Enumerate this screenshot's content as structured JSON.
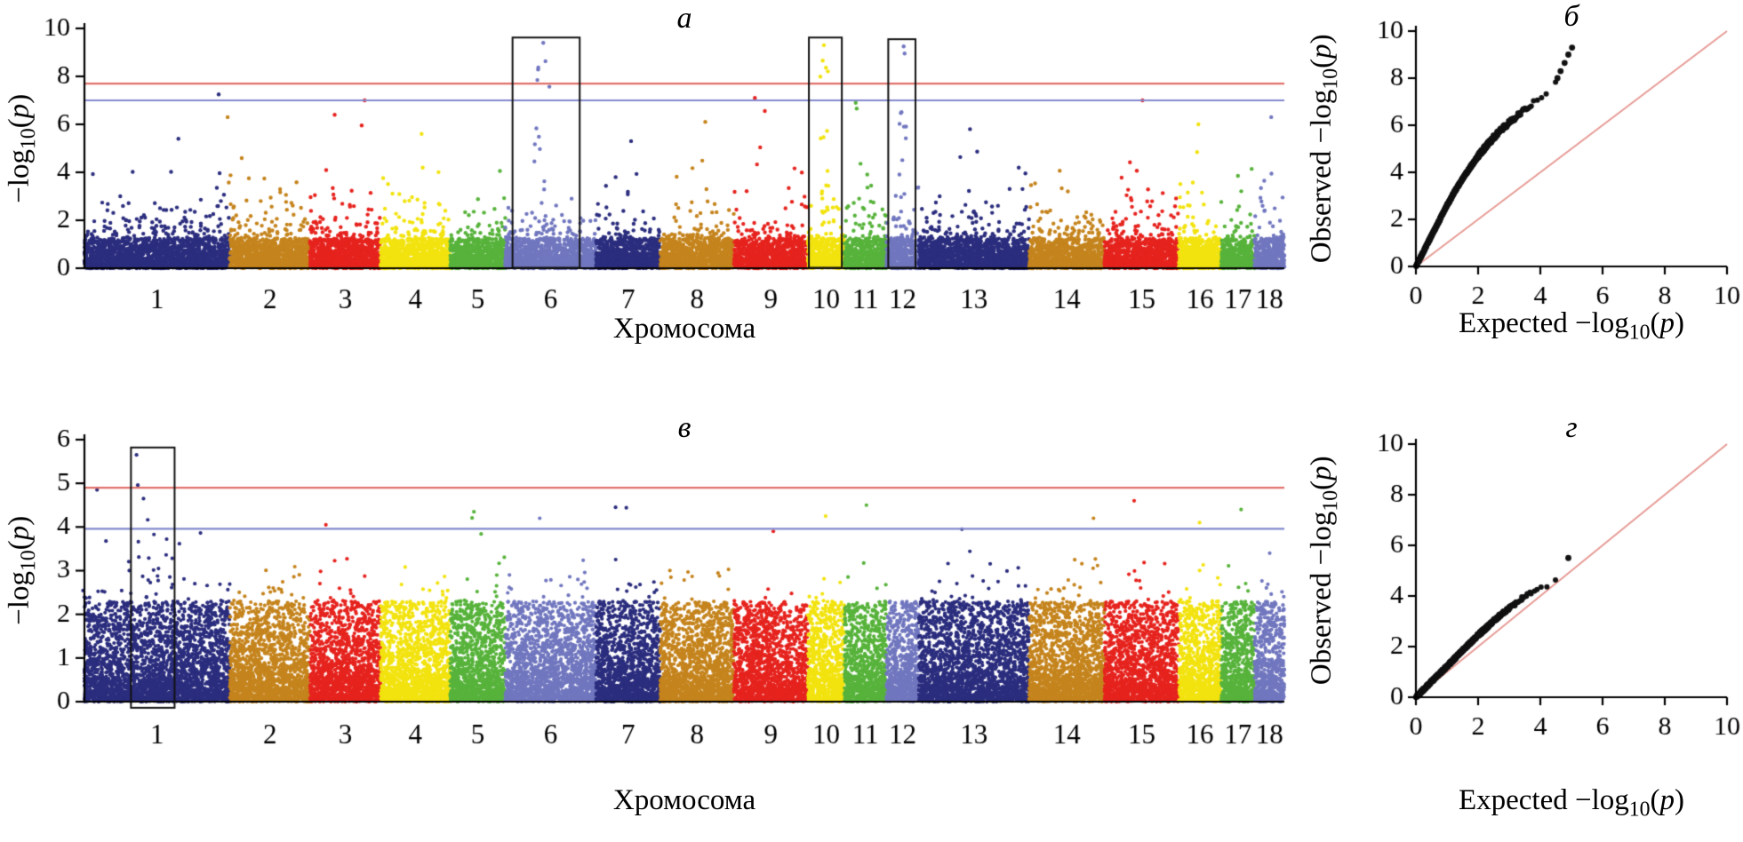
{
  "chart_data": [
    {
      "type": "manhattan",
      "title": "а",
      "xlabel": "Хромосома",
      "ylabel": {
        "prefix": "−log",
        "sub": "10",
        "open": "(",
        "var": "p",
        "close": ")"
      },
      "ylim": [
        0,
        10
      ],
      "yticks": [
        0,
        2,
        4,
        6,
        8,
        10
      ],
      "threshold_lines": [
        {
          "value": 7.7,
          "color": "#e0716a"
        },
        {
          "value": 7.0,
          "color": "#8289ce"
        }
      ],
      "palette": [
        "#2b2d7e",
        "#c5841d",
        "#e6231e",
        "#f2e30f",
        "#57b33b",
        "#7177bf"
      ],
      "density": {
        "points_per_unit": 7,
        "uniform_frac": 0.4,
        "dense_top": 1.25,
        "base_scale": 0.95,
        "tail_scale": 2.0
      },
      "seed": 11,
      "chromosomes": [
        {
          "label": "1",
          "size": 274,
          "bg_max": 4.7,
          "peaks": [
            {
              "pos": 0.94,
              "top": 7.25,
              "n": 2
            },
            {
              "pos": 0.55,
              "top": 5.4,
              "n": 2
            }
          ]
        },
        {
          "label": "2",
          "size": 151,
          "bg_max": 4.6,
          "peaks": [
            {
              "pos": 0.07,
              "top": 6.3,
              "n": 4
            }
          ]
        },
        {
          "label": "3",
          "size": 133,
          "bg_max": 4.9,
          "peaks": [
            {
              "pos": 0.82,
              "top": 7.0,
              "n": 3
            },
            {
              "pos": 0.3,
              "top": 6.4,
              "n": 3
            }
          ]
        },
        {
          "label": "4",
          "size": 131,
          "bg_max": 4.2,
          "peaks": [
            {
              "pos": 0.5,
              "top": 5.6,
              "n": 2
            }
          ]
        },
        {
          "label": "5",
          "size": 104,
          "bg_max": 4.6,
          "peaks": []
        },
        {
          "label": "6",
          "size": 171,
          "bg_max": 4.3,
          "peaks": [
            {
              "pos": 0.42,
              "top": 9.4,
              "n": 13
            }
          ]
        },
        {
          "label": "7",
          "size": 121,
          "bg_max": 4.3,
          "peaks": [
            {
              "pos": 0.45,
              "top": 5.3,
              "n": 2
            }
          ]
        },
        {
          "label": "8",
          "size": 139,
          "bg_max": 4.3,
          "peaks": [
            {
              "pos": 0.55,
              "top": 6.1,
              "n": 3
            }
          ]
        },
        {
          "label": "9",
          "size": 139,
          "bg_max": 4.4,
          "peaks": [
            {
              "pos": 0.35,
              "top": 7.1,
              "n": 4
            }
          ]
        },
        {
          "label": "10",
          "size": 69,
          "bg_max": 4.3,
          "peaks": [
            {
              "pos": 0.45,
              "top": 9.3,
              "n": 14
            }
          ]
        },
        {
          "label": "11",
          "size": 79,
          "bg_max": 4.4,
          "peaks": [
            {
              "pos": 0.3,
              "top": 6.9,
              "n": 3
            }
          ]
        },
        {
          "label": "12",
          "size": 61,
          "bg_max": 4.2,
          "peaks": [
            {
              "pos": 0.5,
              "top": 9.25,
              "n": 11
            }
          ]
        },
        {
          "label": "13",
          "size": 208,
          "bg_max": 4.4,
          "peaks": [
            {
              "pos": 0.45,
              "top": 5.8,
              "n": 3
            }
          ]
        },
        {
          "label": "14",
          "size": 142,
          "bg_max": 4.5,
          "peaks": []
        },
        {
          "label": "15",
          "size": 140,
          "bg_max": 4.5,
          "peaks": [
            {
              "pos": 0.45,
              "top": 7.0,
              "n": 3
            }
          ]
        },
        {
          "label": "16",
          "size": 80,
          "bg_max": 4.3,
          "peaks": [
            {
              "pos": 0.5,
              "top": 6.0,
              "n": 2
            }
          ]
        },
        {
          "label": "17",
          "size": 63,
          "bg_max": 4.3,
          "peaks": []
        },
        {
          "label": "18",
          "size": 56,
          "bg_max": 4.2,
          "peaks": [
            {
              "pos": 0.5,
              "top": 6.3,
              "n": 2
            }
          ]
        }
      ],
      "highlight_boxes": [
        {
          "chr": 6,
          "x0": 0.08,
          "x1": 0.82,
          "y0": 0.02,
          "y1": 9.62
        },
        {
          "chr": 10,
          "x0": 0.03,
          "x1": 0.93,
          "y0": 0.02,
          "y1": 9.62
        },
        {
          "chr": 12,
          "x0": 0.06,
          "x1": 0.9,
          "y0": 0.02,
          "y1": 9.55
        }
      ]
    },
    {
      "type": "qq",
      "title": "б",
      "xlabel": {
        "prefix": "Expected −log",
        "sub": "10",
        "open": "(",
        "var": "p",
        "close": ")"
      },
      "ylabel": {
        "prefix": "Observed −log",
        "sub": "10",
        "open": "(",
        "var": "p",
        "close": ")"
      },
      "xlim": [
        0,
        10
      ],
      "ylim": [
        0,
        10
      ],
      "xticks": [
        0,
        2,
        4,
        6,
        8,
        10
      ],
      "yticks": [
        0,
        2,
        4,
        6,
        8,
        10
      ],
      "diagonal": {
        "from": [
          0,
          0
        ],
        "to": [
          10,
          10
        ],
        "color": "#e59791"
      },
      "point_color": "#111111",
      "curve": [
        [
          0,
          0
        ],
        [
          0.25,
          0.65
        ],
        [
          0.5,
          1.3
        ],
        [
          0.75,
          1.95
        ],
        [
          1,
          2.6
        ],
        [
          1.25,
          3.2
        ],
        [
          1.5,
          3.72
        ],
        [
          1.75,
          4.22
        ],
        [
          2,
          4.68
        ],
        [
          2.25,
          5.1
        ],
        [
          2.5,
          5.48
        ],
        [
          2.75,
          5.82
        ],
        [
          3,
          6.12
        ],
        [
          3.25,
          6.4
        ],
        [
          3.5,
          6.67
        ],
        [
          3.75,
          6.93
        ],
        [
          4,
          7.18
        ],
        [
          4.25,
          7.45
        ],
        [
          4.5,
          7.8
        ]
      ],
      "outlier_points": [
        [
          4.55,
          8.0
        ],
        [
          4.65,
          8.3
        ],
        [
          4.78,
          8.65
        ],
        [
          4.9,
          9.0
        ],
        [
          5.02,
          9.3
        ]
      ],
      "seed": 22
    },
    {
      "type": "manhattan",
      "title": "в",
      "xlabel": "Хромосома",
      "ylabel": {
        "prefix": "−log",
        "sub": "10",
        "open": "(",
        "var": "p",
        "close": ")"
      },
      "ylim": [
        0,
        6
      ],
      "yticks": [
        0,
        1,
        2,
        3,
        4,
        5,
        6
      ],
      "threshold_lines": [
        {
          "value": 4.9,
          "color": "#e0716a"
        },
        {
          "value": 3.96,
          "color": "#8289ce"
        }
      ],
      "palette": [
        "#2b2d7e",
        "#c5841d",
        "#e6231e",
        "#f2e30f",
        "#57b33b",
        "#7177bf"
      ],
      "density": {
        "points_per_unit": 11,
        "uniform_frac": 0.45,
        "dense_top": 2.3,
        "base_scale": 1.05,
        "tail_scale": 1.7
      },
      "seed": 33,
      "chromosomes": [
        {
          "label": "1",
          "size": 274,
          "bg_max": 3.9,
          "peaks": [
            {
              "pos": 0.45,
              "top": 5.65,
              "n": 6
            },
            {
              "pos": 0.1,
              "top": 4.85,
              "n": 2
            },
            {
              "pos": 0.38,
              "top": 4.65,
              "n": 3
            }
          ]
        },
        {
          "label": "2",
          "size": 151,
          "bg_max": 3.1,
          "peaks": []
        },
        {
          "label": "3",
          "size": 133,
          "bg_max": 3.3,
          "peaks": [
            {
              "pos": 0.15,
              "top": 4.05,
              "n": 1
            }
          ]
        },
        {
          "label": "4",
          "size": 131,
          "bg_max": 3.4,
          "peaks": []
        },
        {
          "label": "5",
          "size": 104,
          "bg_max": 3.4,
          "peaks": [
            {
              "pos": 0.5,
              "top": 4.35,
              "n": 3
            }
          ]
        },
        {
          "label": "6",
          "size": 171,
          "bg_max": 3.3,
          "peaks": [
            {
              "pos": 0.45,
              "top": 4.2,
              "n": 2
            }
          ]
        },
        {
          "label": "7",
          "size": 121,
          "bg_max": 3.4,
          "peaks": [
            {
              "pos": 0.4,
              "top": 4.45,
              "n": 2
            }
          ]
        },
        {
          "label": "8",
          "size": 139,
          "bg_max": 3.2,
          "peaks": []
        },
        {
          "label": "9",
          "size": 139,
          "bg_max": 3.2,
          "peaks": [
            {
              "pos": 0.6,
              "top": 3.9,
              "n": 1
            }
          ]
        },
        {
          "label": "10",
          "size": 69,
          "bg_max": 3.3,
          "peaks": [
            {
              "pos": 0.4,
              "top": 4.25,
              "n": 2
            }
          ]
        },
        {
          "label": "11",
          "size": 79,
          "bg_max": 3.4,
          "peaks": [
            {
              "pos": 0.5,
              "top": 4.5,
              "n": 2
            }
          ]
        },
        {
          "label": "12",
          "size": 61,
          "bg_max": 3.0,
          "peaks": []
        },
        {
          "label": "13",
          "size": 208,
          "bg_max": 3.3,
          "peaks": [
            {
              "pos": 0.5,
              "top": 3.95,
              "n": 2
            }
          ]
        },
        {
          "label": "14",
          "size": 142,
          "bg_max": 3.3,
          "peaks": [
            {
              "pos": 0.75,
              "top": 4.2,
              "n": 2
            }
          ]
        },
        {
          "label": "15",
          "size": 140,
          "bg_max": 3.4,
          "peaks": [
            {
              "pos": 0.35,
              "top": 4.6,
              "n": 3
            }
          ]
        },
        {
          "label": "16",
          "size": 80,
          "bg_max": 3.2,
          "peaks": [
            {
              "pos": 0.5,
              "top": 4.1,
              "n": 1
            }
          ]
        },
        {
          "label": "17",
          "size": 63,
          "bg_max": 3.3,
          "peaks": [
            {
              "pos": 0.5,
              "top": 4.4,
              "n": 2
            }
          ]
        },
        {
          "label": "18",
          "size": 56,
          "bg_max": 3.0,
          "peaks": [
            {
              "pos": 0.6,
              "top": 3.4,
              "n": 1
            }
          ]
        }
      ],
      "highlight_boxes": [
        {
          "chr": 1,
          "x0": 0.32,
          "x1": 0.62,
          "y0": -0.14,
          "y1": 5.82
        }
      ]
    },
    {
      "type": "qq",
      "title": "г",
      "xlabel": {
        "prefix": "Expected −log",
        "sub": "10",
        "open": "(",
        "var": "p",
        "close": ")"
      },
      "ylabel": {
        "prefix": "Observed −log",
        "sub": "10",
        "open": "(",
        "var": "p",
        "close": ")"
      },
      "xlim": [
        0,
        10
      ],
      "ylim": [
        0,
        10
      ],
      "xticks": [
        0,
        2,
        4,
        6,
        8,
        10
      ],
      "yticks": [
        0,
        2,
        4,
        6,
        8,
        10
      ],
      "diagonal": {
        "from": [
          0,
          0
        ],
        "to": [
          10,
          10
        ],
        "color": "#e59791"
      },
      "point_color": "#111111",
      "curve": [
        [
          0,
          0
        ],
        [
          0.5,
          0.62
        ],
        [
          1,
          1.22
        ],
        [
          1.5,
          1.85
        ],
        [
          2,
          2.45
        ],
        [
          2.5,
          3.02
        ],
        [
          3,
          3.52
        ],
        [
          3.5,
          3.97
        ],
        [
          4,
          4.32
        ],
        [
          4.3,
          4.48
        ],
        [
          4.5,
          4.58
        ]
      ],
      "outlier_points": [
        [
          4.9,
          5.5
        ]
      ],
      "seed": 44
    }
  ]
}
